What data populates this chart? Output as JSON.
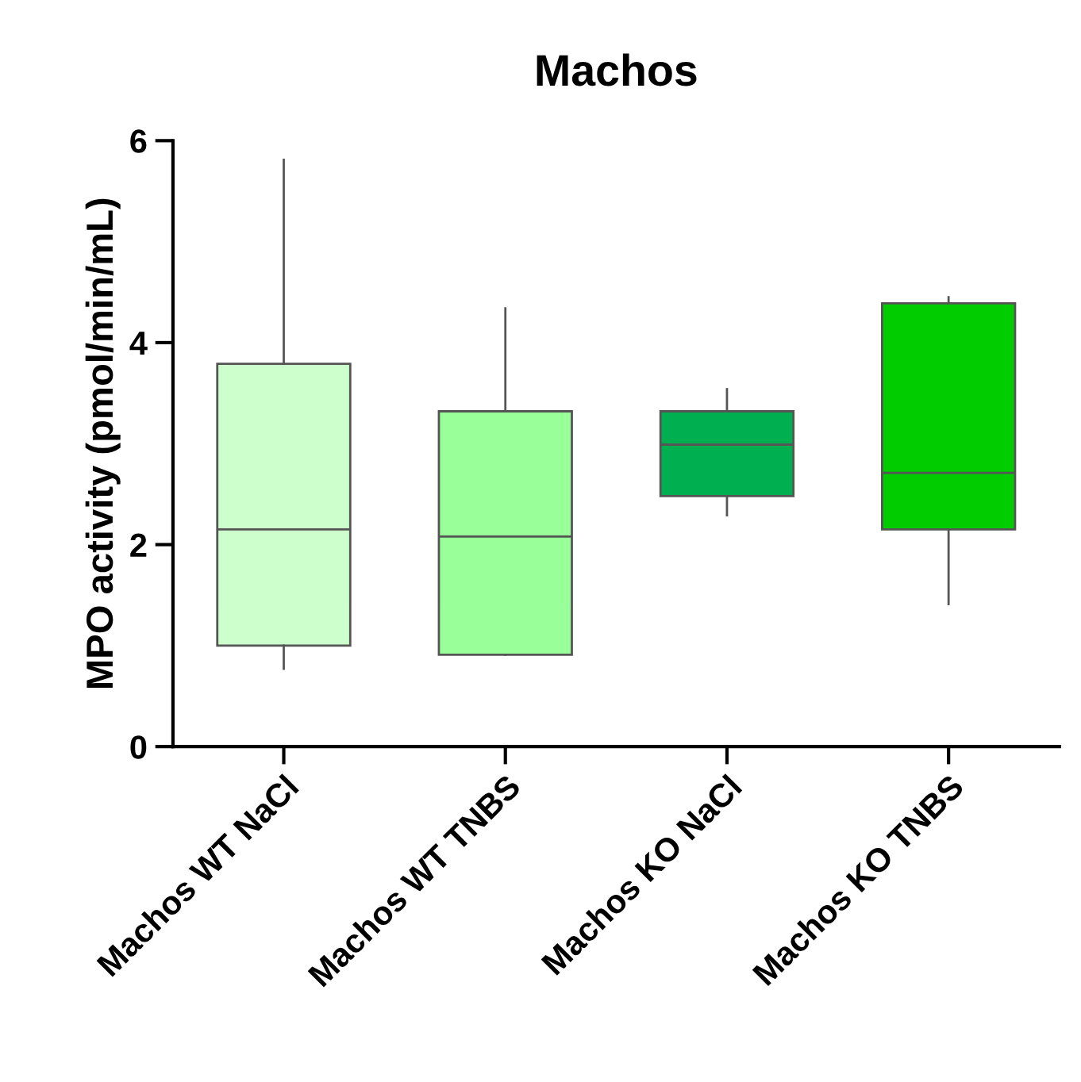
{
  "chart_data": {
    "type": "box",
    "title": "Machos",
    "ylabel": "MPO activity (pmol/min/mL)",
    "categories": [
      "Machos WT NaCl",
      "Machos WT TNBS",
      "Machos KO NaCl",
      "Machos KO TNBS"
    ],
    "colors": [
      "#ccffcc",
      "#99ff99",
      "#00b050",
      "#00cc00"
    ],
    "boxes": [
      {
        "low": 0.77,
        "q1": 1.0,
        "median": 2.15,
        "q3": 3.79,
        "high": 5.81
      },
      {
        "low": 0.91,
        "q1": 0.91,
        "median": 2.08,
        "q3": 3.32,
        "high": 4.34
      },
      {
        "low": 2.29,
        "q1": 2.48,
        "median": 2.99,
        "q3": 3.32,
        "high": 3.54
      },
      {
        "low": 1.41,
        "q1": 2.15,
        "median": 2.71,
        "q3": 4.39,
        "high": 4.45
      }
    ],
    "ylim": [
      0,
      6
    ],
    "yticks": [
      0,
      2,
      4,
      6
    ],
    "grid": false
  }
}
